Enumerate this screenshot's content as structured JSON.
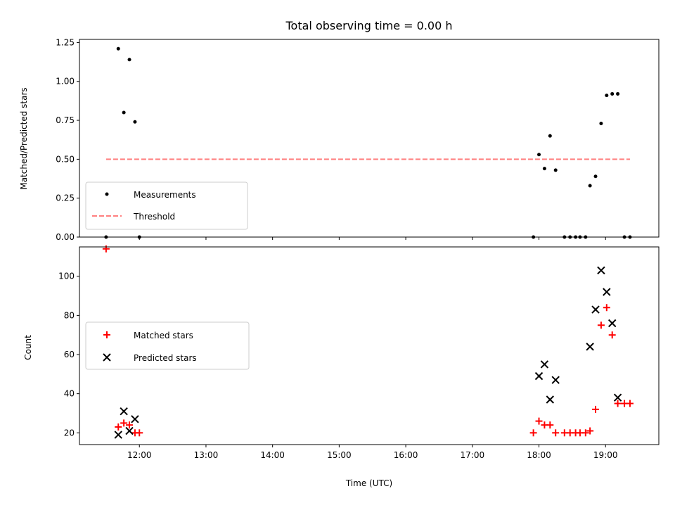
{
  "chart_data": [
    {
      "type": "scatter",
      "title": "Total observing time = 0.00 h",
      "xlabel": "",
      "ylabel": "Matched/Predicted stars",
      "xlim": [
        "11:06",
        "19:48"
      ],
      "ylim": [
        0,
        1.27
      ],
      "yticks": [
        "0.00",
        "0.25",
        "0.50",
        "0.75",
        "1.00",
        "1.25"
      ],
      "legend_position": "lower-left",
      "series": [
        {
          "name": "Measurements",
          "marker": "dot",
          "color": "#000000",
          "points": [
            {
              "x": "11:30",
              "y": 0.0
            },
            {
              "x": "11:41",
              "y": 1.21
            },
            {
              "x": "11:46",
              "y": 0.8
            },
            {
              "x": "11:51",
              "y": 1.14
            },
            {
              "x": "11:56",
              "y": 0.74
            },
            {
              "x": "12:00",
              "y": 0.0
            },
            {
              "x": "17:55",
              "y": 0.0
            },
            {
              "x": "18:00",
              "y": 0.53
            },
            {
              "x": "18:05",
              "y": 0.44
            },
            {
              "x": "18:10",
              "y": 0.65
            },
            {
              "x": "18:15",
              "y": 0.43
            },
            {
              "x": "18:23",
              "y": 0.0
            },
            {
              "x": "18:28",
              "y": 0.0
            },
            {
              "x": "18:33",
              "y": 0.0
            },
            {
              "x": "18:37",
              "y": 0.0
            },
            {
              "x": "18:42",
              "y": 0.0
            },
            {
              "x": "18:46",
              "y": 0.33
            },
            {
              "x": "18:51",
              "y": 0.39
            },
            {
              "x": "18:56",
              "y": 0.73
            },
            {
              "x": "19:01",
              "y": 0.91
            },
            {
              "x": "19:06",
              "y": 0.92
            },
            {
              "x": "19:11",
              "y": 0.92
            },
            {
              "x": "19:17",
              "y": 0.0
            },
            {
              "x": "19:22",
              "y": 0.0
            }
          ]
        },
        {
          "name": "Threshold",
          "marker": "dashed-line",
          "color": "#ff7f7f",
          "points": [
            {
              "x": "11:30",
              "y": 0.5
            },
            {
              "x": "19:22",
              "y": 0.5
            }
          ]
        }
      ]
    },
    {
      "type": "scatter",
      "title": "",
      "xlabel": "Time (UTC)",
      "ylabel": "Count",
      "xlim": [
        "11:06",
        "19:48"
      ],
      "ylim": [
        14,
        115
      ],
      "xticks": [
        "12:00",
        "13:00",
        "14:00",
        "15:00",
        "16:00",
        "17:00",
        "18:00",
        "19:00"
      ],
      "yticks": [
        "20",
        "40",
        "60",
        "80",
        "100"
      ],
      "legend_position": "center-left",
      "series": [
        {
          "name": "Matched stars",
          "marker": "plus",
          "color": "#ff0000",
          "points": [
            {
              "x": "11:30",
              "y": 114
            },
            {
              "x": "11:41",
              "y": 23
            },
            {
              "x": "11:46",
              "y": 25
            },
            {
              "x": "11:51",
              "y": 24
            },
            {
              "x": "11:56",
              "y": 20
            },
            {
              "x": "12:00",
              "y": 20
            },
            {
              "x": "17:55",
              "y": 20
            },
            {
              "x": "18:00",
              "y": 26
            },
            {
              "x": "18:05",
              "y": 24
            },
            {
              "x": "18:10",
              "y": 24
            },
            {
              "x": "18:15",
              "y": 20
            },
            {
              "x": "18:23",
              "y": 20
            },
            {
              "x": "18:28",
              "y": 20
            },
            {
              "x": "18:33",
              "y": 20
            },
            {
              "x": "18:37",
              "y": 20
            },
            {
              "x": "18:42",
              "y": 20
            },
            {
              "x": "18:46",
              "y": 21
            },
            {
              "x": "18:51",
              "y": 32
            },
            {
              "x": "18:56",
              "y": 75
            },
            {
              "x": "19:01",
              "y": 84
            },
            {
              "x": "19:06",
              "y": 70
            },
            {
              "x": "19:11",
              "y": 35
            },
            {
              "x": "19:17",
              "y": 35
            },
            {
              "x": "19:22",
              "y": 35
            }
          ]
        },
        {
          "name": "Predicted stars",
          "marker": "x",
          "color": "#000000",
          "points": [
            {
              "x": "11:41",
              "y": 19
            },
            {
              "x": "11:46",
              "y": 31
            },
            {
              "x": "11:51",
              "y": 21
            },
            {
              "x": "11:56",
              "y": 27
            },
            {
              "x": "18:00",
              "y": 49
            },
            {
              "x": "18:05",
              "y": 55
            },
            {
              "x": "18:10",
              "y": 37
            },
            {
              "x": "18:15",
              "y": 47
            },
            {
              "x": "18:46",
              "y": 64
            },
            {
              "x": "18:51",
              "y": 83
            },
            {
              "x": "18:56",
              "y": 103
            },
            {
              "x": "19:01",
              "y": 92
            },
            {
              "x": "19:06",
              "y": 76
            },
            {
              "x": "19:11",
              "y": 38
            }
          ]
        }
      ]
    }
  ]
}
